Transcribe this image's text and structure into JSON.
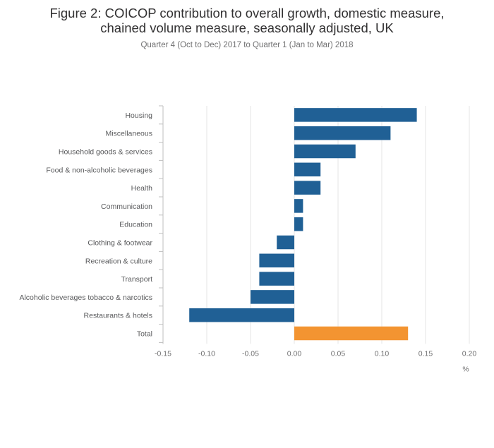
{
  "title_line1": "Figure 2: COICOP contribution to overall growth, domestic measure,",
  "title_line2": "chained volume measure, seasonally adjusted, UK",
  "subtitle": "Quarter 4 (Oct to Dec) 2017 to Quarter 1 (Jan to Mar) 2018",
  "colors": {
    "bar": "#206095",
    "total": "#f39431",
    "grid": "#e6e6e6",
    "axis": "#bfbfbf"
  },
  "chart_data": {
    "type": "bar",
    "orientation": "horizontal",
    "categories": [
      "Housing",
      "Miscellaneous",
      "Household goods & services",
      "Food & non-alcoholic beverages",
      "Health",
      "Communication",
      "Education",
      "Clothing & footwear",
      "Recreation & culture",
      "Transport",
      "Alcoholic beverages tobacco & narcotics",
      "Restaurants & hotels",
      "Total"
    ],
    "values": [
      0.14,
      0.11,
      0.07,
      0.03,
      0.03,
      0.01,
      0.01,
      -0.02,
      -0.04,
      -0.04,
      -0.05,
      -0.12,
      0.13
    ],
    "highlight_category": "Total",
    "xlim": [
      -0.15,
      0.2
    ],
    "xticks": [
      -0.15,
      -0.1,
      -0.05,
      0.0,
      0.05,
      0.1,
      0.15,
      0.2
    ],
    "xtick_labels": [
      "-0.15",
      "-0.10",
      "-0.05",
      "0.00",
      "0.05",
      "0.10",
      "0.15",
      "0.20"
    ],
    "xlabel": "%",
    "grid": true
  }
}
